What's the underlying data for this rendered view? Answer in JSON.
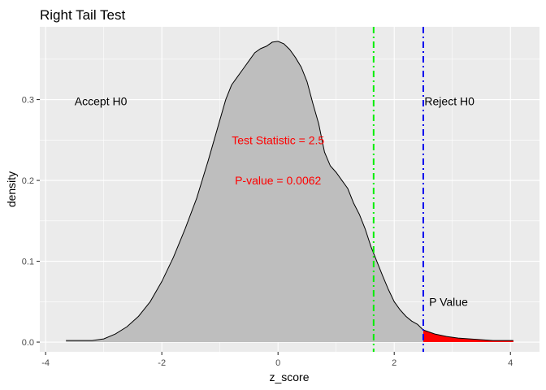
{
  "chart_data": {
    "type": "area",
    "title": "Right Tail Test",
    "xlabel": "z_score",
    "ylabel": "density",
    "xlim": [
      -4.1,
      4.5
    ],
    "ylim": [
      -0.012,
      0.39
    ],
    "x_ticks": [
      -4,
      -2,
      0,
      2,
      4
    ],
    "y_ticks": [
      0.0,
      0.1,
      0.2,
      0.3
    ],
    "y_tick_labels": [
      "0.0",
      "0.1",
      "0.2",
      "0.3"
    ],
    "grid": true,
    "panel_background": "#ebebeb",
    "density": {
      "fill": "#bebebe",
      "outline": "#000000",
      "x": [
        -3.65,
        -3.4,
        -3.2,
        -3.0,
        -2.8,
        -2.6,
        -2.4,
        -2.2,
        -2.0,
        -1.8,
        -1.6,
        -1.4,
        -1.2,
        -1.0,
        -0.9,
        -0.8,
        -0.7,
        -0.6,
        -0.5,
        -0.4,
        -0.3,
        -0.2,
        -0.1,
        0.0,
        0.1,
        0.2,
        0.3,
        0.4,
        0.5,
        0.6,
        0.7,
        0.8,
        0.9,
        1.0,
        1.1,
        1.2,
        1.3,
        1.4,
        1.5,
        1.6,
        1.7,
        1.8,
        1.9,
        2.0,
        2.1,
        2.2,
        2.3,
        2.4,
        2.5,
        2.7,
        2.9,
        3.1,
        3.3,
        3.5,
        3.7,
        3.9,
        4.05
      ],
      "y": [
        0.002,
        0.002,
        0.002,
        0.004,
        0.01,
        0.019,
        0.032,
        0.05,
        0.075,
        0.105,
        0.14,
        0.178,
        0.225,
        0.275,
        0.3,
        0.318,
        0.328,
        0.338,
        0.348,
        0.358,
        0.363,
        0.366,
        0.371,
        0.372,
        0.369,
        0.362,
        0.352,
        0.34,
        0.322,
        0.295,
        0.27,
        0.235,
        0.218,
        0.21,
        0.2,
        0.19,
        0.172,
        0.158,
        0.14,
        0.118,
        0.1,
        0.082,
        0.065,
        0.05,
        0.04,
        0.032,
        0.026,
        0.022,
        0.015,
        0.01,
        0.007,
        0.005,
        0.004,
        0.003,
        0.002,
        0.002,
        0.002
      ]
    },
    "p_value_region": {
      "x_from": 2.5,
      "fill": "#ff0000"
    },
    "vlines": [
      {
        "x": 1.645,
        "color": "#00ee00",
        "style": "dotdash"
      },
      {
        "x": 2.5,
        "color": "#0000ee",
        "style": "dotdash"
      }
    ],
    "annotations": [
      {
        "text": "Accept H0",
        "x": -3.05,
        "y": 0.298,
        "color": "#000000",
        "anchor": "middle"
      },
      {
        "text": "Reject H0",
        "x": 2.52,
        "y": 0.298,
        "color": "#000000",
        "anchor": "start"
      },
      {
        "text": "Test Statistic =  2.5",
        "x": 0.0,
        "y": 0.25,
        "color": "#ff0000",
        "anchor": "middle"
      },
      {
        "text": "P-value =  0.0062",
        "x": 0.0,
        "y": 0.2,
        "color": "#ff0000",
        "anchor": "middle"
      },
      {
        "text": "P Value",
        "x": 2.6,
        "y": 0.05,
        "color": "#000000",
        "anchor": "start"
      }
    ]
  }
}
